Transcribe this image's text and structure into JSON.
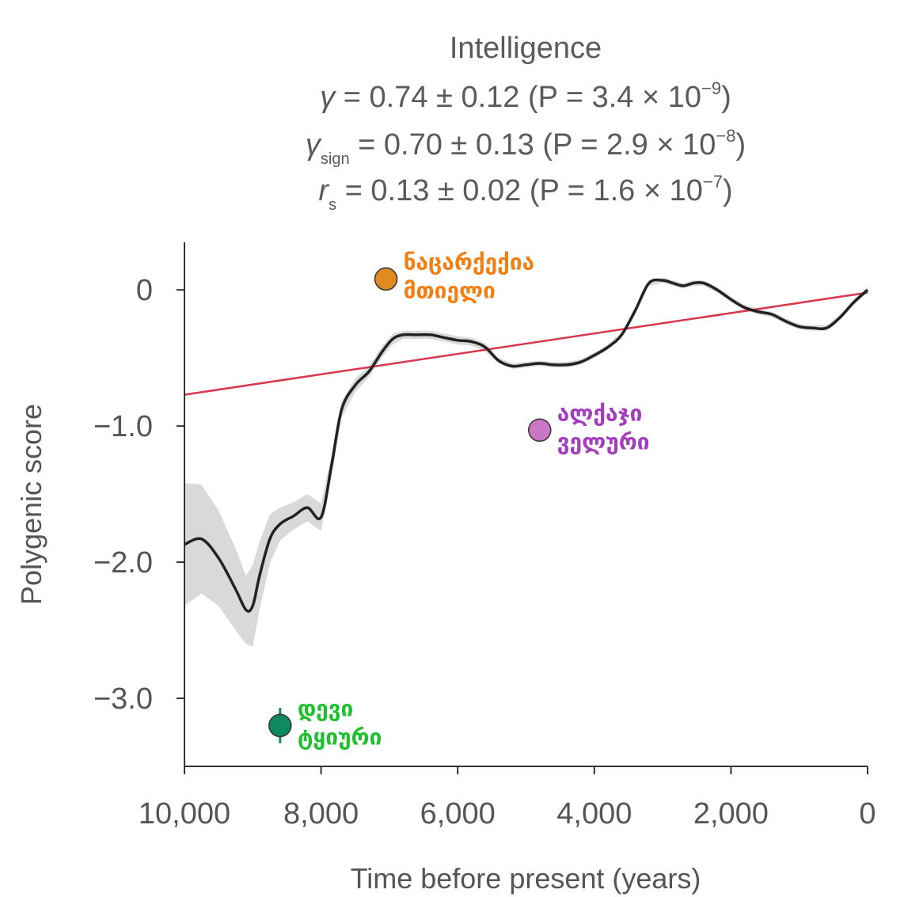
{
  "chart_data": {
    "type": "line",
    "title": "Intelligence",
    "stats": [
      {
        "symbol": "γ",
        "sub": "",
        "text": " = 0.74 ± 0.12 (P = 3.4 × 10",
        "exp": "−9",
        "close": ")"
      },
      {
        "symbol": "γ",
        "sub": "sign",
        "text": " = 0.70 ± 0.13 (P = 2.9 × 10",
        "exp": "−8",
        "close": ")"
      },
      {
        "symbol": "r",
        "sub": "s",
        "text": " = 0.13 ± 0.02 (P = 1.6 × 10",
        "exp": "−7",
        "close": ")"
      }
    ],
    "xlabel": "Time before present (years)",
    "ylabel": "Polygenic score",
    "xlim": [
      10000,
      0
    ],
    "ylim": [
      -3.5,
      0.35
    ],
    "xticks": [
      10000,
      8000,
      6000,
      4000,
      2000,
      0
    ],
    "xtick_labels": [
      "10,000",
      "8,000",
      "6,000",
      "4,000",
      "2,000",
      "0"
    ],
    "yticks": [
      0,
      -1,
      -2,
      -3
    ],
    "ytick_labels": [
      "0",
      "−1.0",
      "−2.0",
      "−3.0"
    ],
    "series": [
      {
        "x": [
          10000,
          9750,
          9500,
          9250,
          9100,
          9000,
          8900,
          8750,
          8600,
          8400,
          8200,
          8000,
          7850,
          7700,
          7500,
          7300,
          7100,
          6950,
          6800,
          6600,
          6400,
          6200,
          6000,
          5800,
          5600,
          5400,
          5200,
          5000,
          4800,
          4600,
          4400,
          4200,
          4000,
          3800,
          3600,
          3400,
          3200,
          3000,
          2850,
          2700,
          2550,
          2400,
          2200,
          2000,
          1800,
          1600,
          1400,
          1200,
          1000,
          800,
          600,
          400,
          200,
          0
        ],
        "y": [
          -1.87,
          -1.83,
          -1.97,
          -2.2,
          -2.35,
          -2.32,
          -2.1,
          -1.83,
          -1.72,
          -1.66,
          -1.6,
          -1.67,
          -1.3,
          -0.88,
          -0.7,
          -0.6,
          -0.45,
          -0.36,
          -0.33,
          -0.33,
          -0.33,
          -0.35,
          -0.37,
          -0.38,
          -0.42,
          -0.52,
          -0.56,
          -0.55,
          -0.54,
          -0.55,
          -0.55,
          -0.53,
          -0.48,
          -0.42,
          -0.33,
          -0.15,
          0.05,
          0.07,
          0.05,
          0.03,
          0.05,
          0.05,
          0.0,
          -0.07,
          -0.13,
          -0.16,
          -0.18,
          -0.23,
          -0.27,
          -0.28,
          -0.28,
          -0.2,
          -0.09,
          0.0
        ],
        "band_half_width": [
          0.45,
          0.4,
          0.35,
          0.3,
          0.25,
          0.3,
          0.25,
          0.18,
          0.12,
          0.1,
          0.1,
          0.1,
          0.08,
          0.06,
          0.05,
          0.04,
          0.04,
          0.04,
          0.03,
          0.03,
          0.03,
          0.03,
          0.03,
          0.03,
          0.03,
          0.02,
          0.02,
          0.02,
          0.02,
          0.02,
          0.02,
          0.02,
          0.02,
          0.02,
          0.02,
          0.02,
          0.02,
          0.02,
          0.02,
          0.02,
          0.02,
          0.02,
          0.02,
          0.02,
          0.02,
          0.02,
          0.02,
          0.02,
          0.02,
          0.02,
          0.02,
          0.02,
          0.02,
          0.02
        ],
        "color": "#222222",
        "band_color": "#d9d9d9"
      }
    ],
    "fit_line": {
      "x": [
        10000,
        0
      ],
      "y": [
        -0.77,
        -0.02
      ],
      "color": "#d9374b"
    },
    "points": [
      {
        "label_lines": [
          "ნაცარქექია",
          "მთიელი"
        ],
        "x": 7050,
        "y": 0.08,
        "err": 0.05,
        "color": "#e08a22",
        "label_color": "#f07f14",
        "label_side": "right"
      },
      {
        "label_lines": [
          "ალქაჯი",
          "ველური"
        ],
        "x": 4800,
        "y": -1.03,
        "err": 0.05,
        "color": "#c977c4",
        "label_color": "#a23ebb",
        "label_side": "right"
      },
      {
        "label_lines": [
          "დევი",
          "ტყიური"
        ],
        "x": 8600,
        "y": -3.2,
        "err": 0.13,
        "color": "#0f8a5f",
        "label_color": "#1fbf30",
        "label_side": "right"
      }
    ]
  }
}
